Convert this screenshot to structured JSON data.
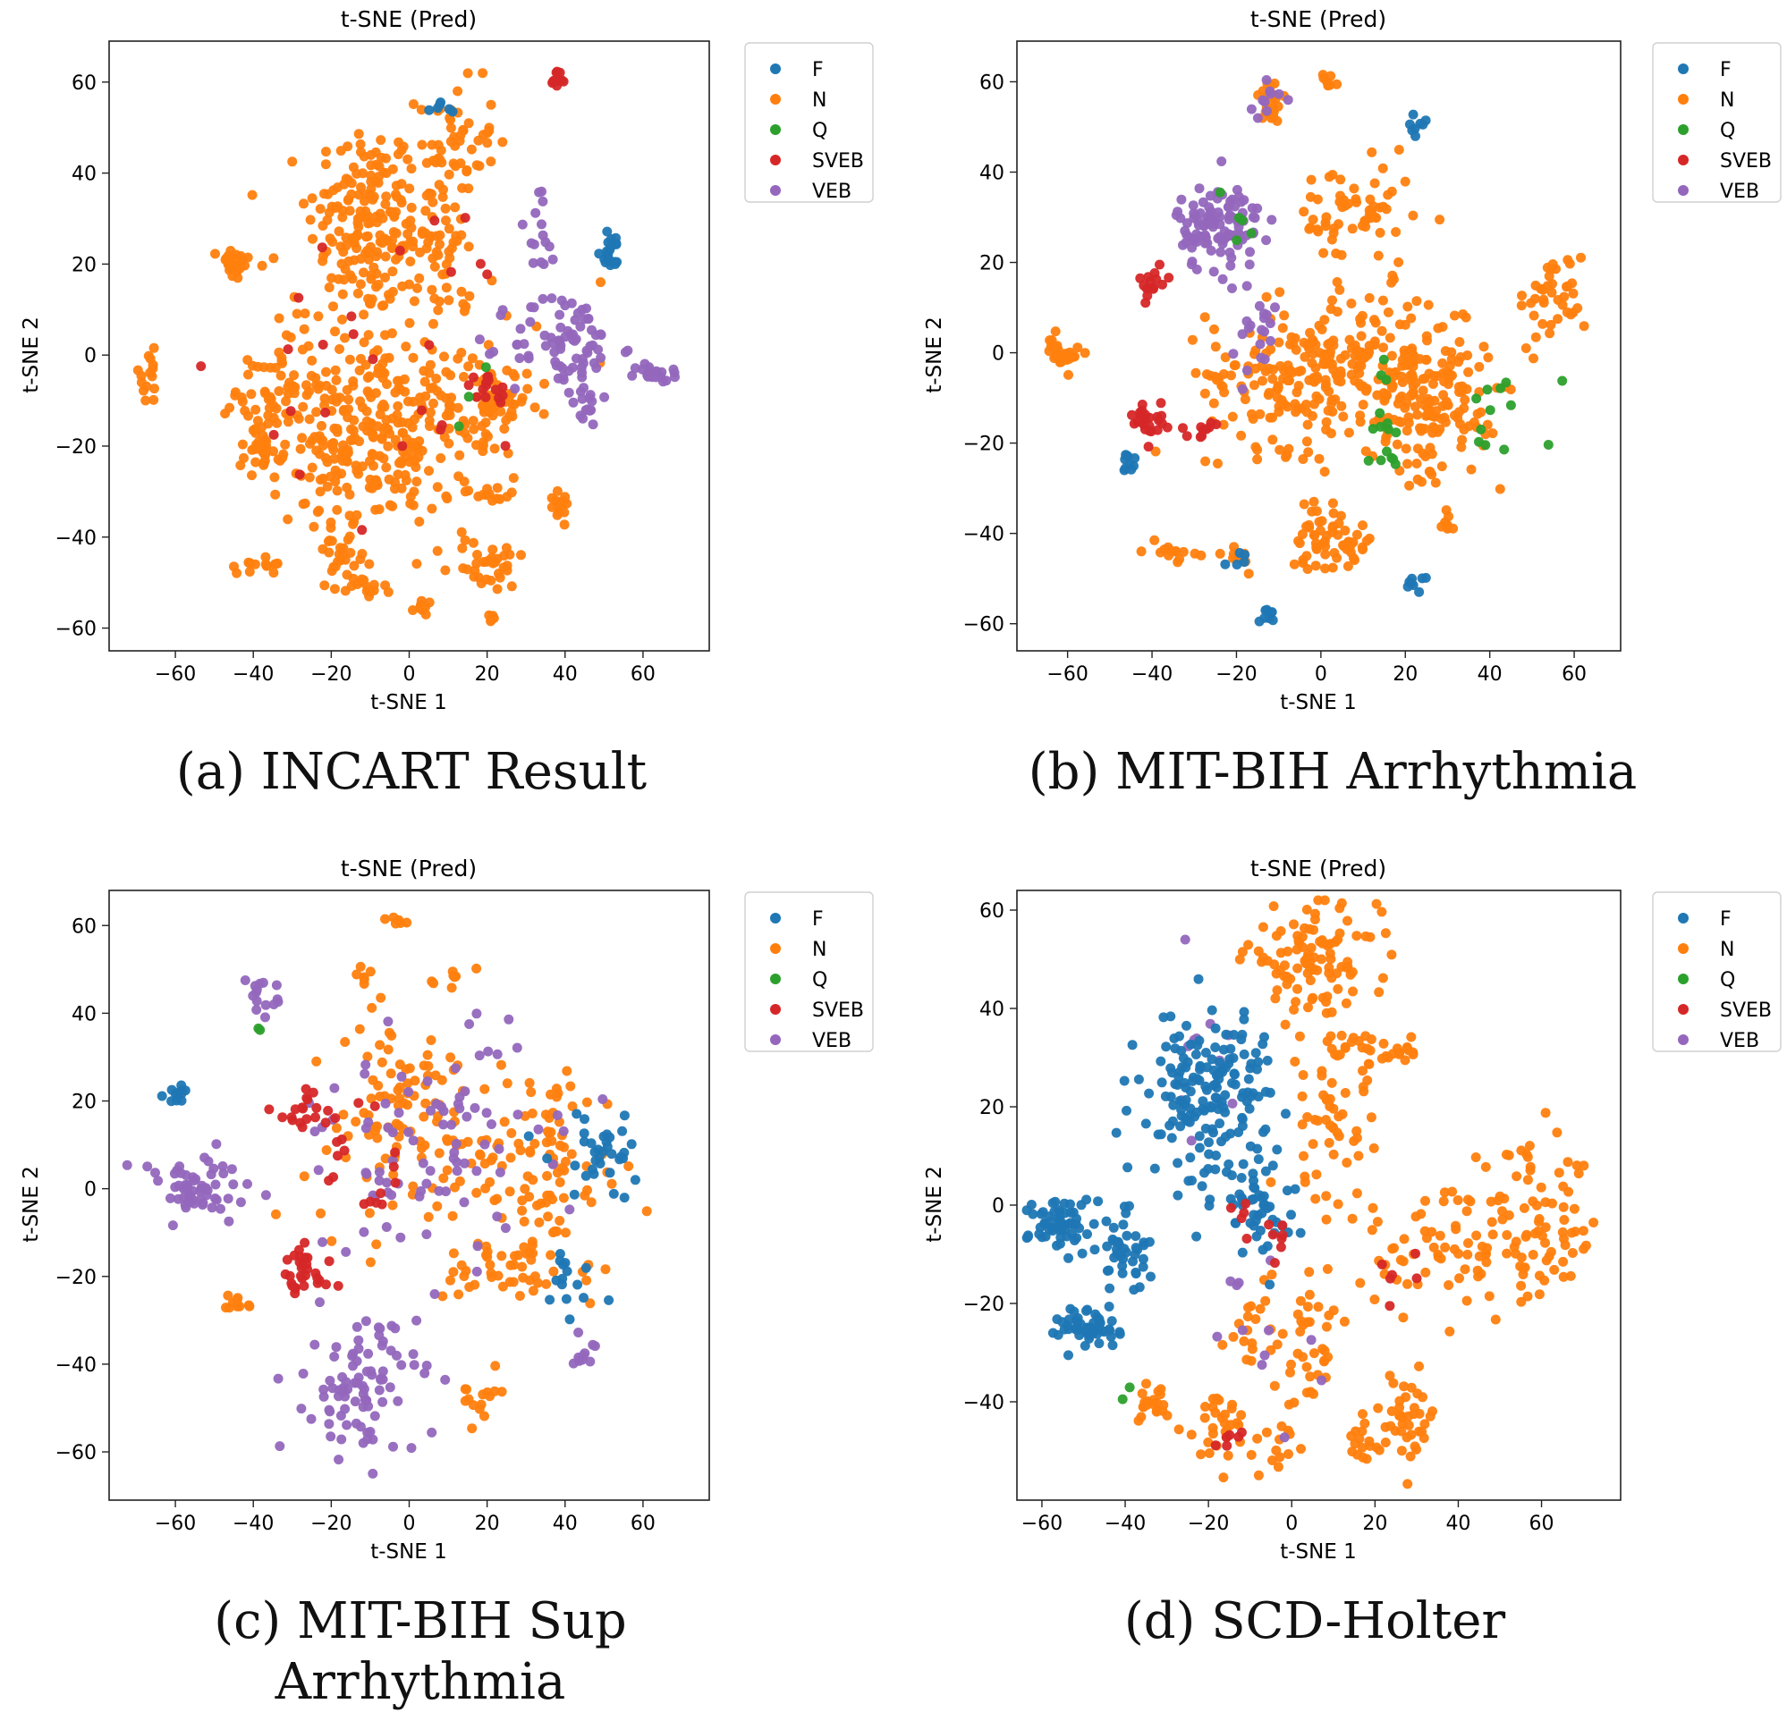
{
  "figures": [
    {
      "caption": "(a) INCART Result",
      "title": "t-SNE (Pred)",
      "xlabel": "t-SNE 1",
      "ylabel": "t-SNE 2",
      "xticks": [
        "−60",
        "−40",
        "−20",
        "0",
        "20",
        "40",
        "60"
      ],
      "yticks": [
        "60",
        "40",
        "20",
        "0",
        "−20",
        "−40",
        "−60"
      ]
    },
    {
      "caption": "(b) MIT-BIH Arrhythmia",
      "title": "t-SNE (Pred)",
      "xlabel": "t-SNE 1",
      "ylabel": "t-SNE 2",
      "xticks": [
        "−60",
        "−40",
        "−20",
        "0",
        "20",
        "40",
        "60"
      ],
      "yticks": [
        "60",
        "40",
        "20",
        "0",
        "−20",
        "−40",
        "−60"
      ]
    },
    {
      "caption_line1": "(c) MIT-BIH Sup",
      "caption_line2": "Arrhythmia",
      "title": "t-SNE (Pred)",
      "xlabel": "t-SNE 1",
      "ylabel": "t-SNE 2",
      "xticks": [
        "−60",
        "−40",
        "−20",
        "0",
        "20",
        "40",
        "60"
      ],
      "yticks": [
        "60",
        "40",
        "20",
        "0",
        "−20",
        "−40",
        "−60"
      ]
    },
    {
      "caption": "(d) SCD-Holter",
      "title": "t-SNE (Pred)",
      "xlabel": "t-SNE 1",
      "ylabel": "t-SNE 2",
      "xticks": [
        "−60",
        "−40",
        "−20",
        "0",
        "20",
        "40",
        "60"
      ],
      "yticks": [
        "60",
        "40",
        "20",
        "0",
        "−20",
        "−40"
      ]
    }
  ],
  "legend": [
    {
      "label": "F",
      "color": "#1f77b4"
    },
    {
      "label": "N",
      "color": "#ff7f0e"
    },
    {
      "label": "Q",
      "color": "#2ca02c"
    },
    {
      "label": "SVEB",
      "color": "#d62728"
    },
    {
      "label": "VEB",
      "color": "#9467bd"
    }
  ],
  "chart_data": [
    {
      "type": "scatter",
      "title": "t-SNE (Pred)",
      "xlabel": "t-SNE 1",
      "ylabel": "t-SNE 2",
      "xlim": [
        -77,
        77
      ],
      "ylim": [
        -65,
        69
      ],
      "xticks": [
        -60,
        -40,
        -20,
        0,
        20,
        40,
        60
      ],
      "yticks": [
        -60,
        -40,
        -20,
        0,
        20,
        40,
        60
      ],
      "legend_position": "outside top-right",
      "clusters": [
        {
          "class": "N",
          "x": -12,
          "y": 30,
          "sx": 7,
          "sy": 11,
          "n": 150
        },
        {
          "class": "N",
          "x": 5,
          "y": 28,
          "sx": 6,
          "sy": 10,
          "n": 80
        },
        {
          "class": "N",
          "x": 12,
          "y": 48,
          "sx": 5,
          "sy": 6,
          "n": 40
        },
        {
          "class": "N",
          "x": -10,
          "y": -20,
          "sx": 13,
          "sy": 9,
          "n": 240
        },
        {
          "class": "N",
          "x": -5,
          "y": 0,
          "sx": 18,
          "sy": 12,
          "n": 120
        },
        {
          "class": "N",
          "x": 20,
          "y": -12,
          "sx": 5,
          "sy": 5,
          "n": 60
        },
        {
          "class": "N",
          "x": -45,
          "y": 20,
          "sx": 2,
          "sy": 2,
          "n": 25
        },
        {
          "class": "N",
          "x": -67,
          "y": -5,
          "sx": 2,
          "sy": 3,
          "n": 15
        },
        {
          "class": "N",
          "x": -38,
          "y": -20,
          "sx": 3,
          "sy": 2,
          "n": 20
        },
        {
          "class": "N",
          "x": -38,
          "y": -46,
          "sx": 3,
          "sy": 1,
          "n": 15
        },
        {
          "class": "N",
          "x": -17,
          "y": -44,
          "sx": 3,
          "sy": 3,
          "n": 25
        },
        {
          "class": "N",
          "x": -12,
          "y": -52,
          "sx": 3,
          "sy": 2,
          "n": 15
        },
        {
          "class": "N",
          "x": 20,
          "y": -46,
          "sx": 5,
          "sy": 3,
          "n": 35
        },
        {
          "class": "N",
          "x": 38,
          "y": -32,
          "sx": 2,
          "sy": 2,
          "n": 15
        },
        {
          "class": "N",
          "x": 20,
          "y": -31,
          "sx": 3,
          "sy": 1,
          "n": 12
        },
        {
          "class": "N",
          "x": 3,
          "y": -55,
          "sx": 1,
          "sy": 1,
          "n": 8
        },
        {
          "class": "N",
          "x": 22,
          "y": -58,
          "sx": 1,
          "sy": 1,
          "n": 6
        },
        {
          "class": "N",
          "x": -35,
          "y": -8,
          "sx": 5,
          "sy": 5,
          "n": 40
        },
        {
          "class": "VEB",
          "x": 40,
          "y": 2,
          "sx": 7,
          "sy": 6,
          "n": 80
        },
        {
          "class": "VEB",
          "x": 64,
          "y": -4,
          "sx": 3,
          "sy": 1,
          "n": 20
        },
        {
          "class": "VEB",
          "x": 33,
          "y": 25,
          "sx": 3,
          "sy": 8,
          "n": 15
        },
        {
          "class": "VEB",
          "x": 45,
          "y": -12,
          "sx": 2,
          "sy": 2,
          "n": 12
        },
        {
          "class": "F",
          "x": 52,
          "y": 23,
          "sx": 2,
          "sy": 2,
          "n": 20
        },
        {
          "class": "F",
          "x": 10,
          "y": 54,
          "sx": 2,
          "sy": 1,
          "n": 6
        },
        {
          "class": "SVEB",
          "x": 38,
          "y": 61,
          "sx": 1,
          "sy": 1,
          "n": 12
        },
        {
          "class": "SVEB",
          "x": 20,
          "y": -8,
          "sx": 3,
          "sy": 2,
          "n": 15
        },
        {
          "class": "SVEB",
          "x": 0,
          "y": 0,
          "sx": 20,
          "sy": 18,
          "n": 25
        },
        {
          "class": "Q",
          "x": 15,
          "y": -8,
          "sx": 4,
          "sy": 4,
          "n": 3
        }
      ]
    },
    {
      "type": "scatter",
      "title": "t-SNE (Pred)",
      "xlabel": "t-SNE 1",
      "ylabel": "t-SNE 2",
      "xlim": [
        -72,
        71
      ],
      "ylim": [
        -66,
        69
      ],
      "xticks": [
        -60,
        -40,
        -20,
        0,
        20,
        40,
        60
      ],
      "yticks": [
        -60,
        -40,
        -20,
        0,
        20,
        40,
        60
      ],
      "legend_position": "outside top-right",
      "clusters": [
        {
          "class": "VEB",
          "x": -24,
          "y": 28,
          "sx": 5,
          "sy": 5,
          "n": 110
        },
        {
          "class": "VEB",
          "x": -15,
          "y": 5,
          "sx": 3,
          "sy": 5,
          "n": 20
        },
        {
          "class": "VEB",
          "x": -13,
          "y": 55,
          "sx": 2,
          "sy": 3,
          "n": 10
        },
        {
          "class": "N",
          "x": -12,
          "y": 56,
          "sx": 2,
          "sy": 3,
          "n": 20
        },
        {
          "class": "N",
          "x": -7,
          "y": -5,
          "sx": 10,
          "sy": 8,
          "n": 160
        },
        {
          "class": "N",
          "x": 15,
          "y": -3,
          "sx": 10,
          "sy": 8,
          "n": 140
        },
        {
          "class": "N",
          "x": 30,
          "y": -10,
          "sx": 6,
          "sy": 7,
          "n": 80
        },
        {
          "class": "N",
          "x": 8,
          "y": 30,
          "sx": 7,
          "sy": 6,
          "n": 60
        },
        {
          "class": "N",
          "x": 55,
          "y": 12,
          "sx": 4,
          "sy": 5,
          "n": 40
        },
        {
          "class": "N",
          "x": -61,
          "y": 0,
          "sx": 2,
          "sy": 2,
          "n": 25
        },
        {
          "class": "N",
          "x": -1,
          "y": -40,
          "sx": 3,
          "sy": 4,
          "n": 40
        },
        {
          "class": "N",
          "x": 8,
          "y": -43,
          "sx": 3,
          "sy": 2,
          "n": 20
        },
        {
          "class": "N",
          "x": -36,
          "y": -44,
          "sx": 3,
          "sy": 1,
          "n": 15
        },
        {
          "class": "N",
          "x": -20,
          "y": -44,
          "sx": 2,
          "sy": 2,
          "n": 10
        },
        {
          "class": "N",
          "x": 2,
          "y": 60,
          "sx": 1,
          "sy": 1,
          "n": 8
        },
        {
          "class": "N",
          "x": 30,
          "y": -37,
          "sx": 1,
          "sy": 2,
          "n": 8
        },
        {
          "class": "N",
          "x": 22,
          "y": -20,
          "sx": 3,
          "sy": 6,
          "n": 30
        },
        {
          "class": "F",
          "x": 23,
          "y": 50,
          "sx": 1,
          "sy": 1,
          "n": 8
        },
        {
          "class": "F",
          "x": 22,
          "y": -51,
          "sx": 1,
          "sy": 1,
          "n": 8
        },
        {
          "class": "F",
          "x": -45,
          "y": -24,
          "sx": 1,
          "sy": 2,
          "n": 10
        },
        {
          "class": "F",
          "x": -13,
          "y": -58,
          "sx": 1,
          "sy": 1,
          "n": 8
        },
        {
          "class": "F",
          "x": -18,
          "y": -46,
          "sx": 2,
          "sy": 1,
          "n": 5
        },
        {
          "class": "SVEB",
          "x": -41,
          "y": -15,
          "sx": 2,
          "sy": 2,
          "n": 25
        },
        {
          "class": "SVEB",
          "x": -40,
          "y": 16,
          "sx": 2,
          "sy": 2,
          "n": 15
        },
        {
          "class": "SVEB",
          "x": -27,
          "y": -17,
          "sx": 3,
          "sy": 1,
          "n": 10
        },
        {
          "class": "Q",
          "x": 15,
          "y": -15,
          "sx": 2,
          "sy": 8,
          "n": 15
        },
        {
          "class": "Q",
          "x": 45,
          "y": -12,
          "sx": 5,
          "sy": 5,
          "n": 12
        },
        {
          "class": "Q",
          "x": -20,
          "y": 30,
          "sx": 3,
          "sy": 3,
          "n": 5
        }
      ]
    },
    {
      "type": "scatter",
      "title": "t-SNE (Pred)",
      "xlabel": "t-SNE 1",
      "ylabel": "t-SNE 2",
      "xlim": [
        -77,
        77
      ],
      "ylim": [
        -71,
        68
      ],
      "xticks": [
        -60,
        -40,
        -20,
        0,
        20,
        40,
        60
      ],
      "yticks": [
        -60,
        -40,
        -20,
        0,
        20,
        40,
        60
      ],
      "legend_position": "outside top-right",
      "clusters": [
        {
          "class": "VEB",
          "x": -55,
          "y": -1,
          "sx": 8,
          "sy": 4,
          "n": 60
        },
        {
          "class": "VEB",
          "x": -12,
          "y": -45,
          "sx": 7,
          "sy": 8,
          "n": 90
        },
        {
          "class": "VEB",
          "x": 5,
          "y": 10,
          "sx": 20,
          "sy": 14,
          "n": 90
        },
        {
          "class": "VEB",
          "x": -38,
          "y": 44,
          "sx": 2,
          "sy": 2,
          "n": 15
        },
        {
          "class": "VEB",
          "x": 45,
          "y": -37,
          "sx": 2,
          "sy": 2,
          "n": 10
        },
        {
          "class": "N",
          "x": -2,
          "y": 15,
          "sx": 12,
          "sy": 12,
          "n": 110
        },
        {
          "class": "N",
          "x": 35,
          "y": 5,
          "sx": 10,
          "sy": 12,
          "n": 100
        },
        {
          "class": "N",
          "x": 25,
          "y": -18,
          "sx": 8,
          "sy": 4,
          "n": 40
        },
        {
          "class": "N",
          "x": -12,
          "y": 49,
          "sx": 1,
          "sy": 1,
          "n": 6
        },
        {
          "class": "N",
          "x": -3,
          "y": 61,
          "sx": 1,
          "sy": 1,
          "n": 6
        },
        {
          "class": "N",
          "x": 10,
          "y": 48,
          "sx": 2,
          "sy": 1,
          "n": 8
        },
        {
          "class": "N",
          "x": 18,
          "y": -47,
          "sx": 3,
          "sy": 3,
          "n": 15
        },
        {
          "class": "N",
          "x": -45,
          "y": -26,
          "sx": 2,
          "sy": 1,
          "n": 10
        },
        {
          "class": "F",
          "x": -59,
          "y": 22,
          "sx": 2,
          "sy": 1,
          "n": 12
        },
        {
          "class": "F",
          "x": 50,
          "y": 8,
          "sx": 7,
          "sy": 5,
          "n": 35
        },
        {
          "class": "F",
          "x": 40,
          "y": -22,
          "sx": 5,
          "sy": 6,
          "n": 15
        },
        {
          "class": "SVEB",
          "x": -28,
          "y": -20,
          "sx": 4,
          "sy": 3,
          "n": 30
        },
        {
          "class": "SVEB",
          "x": -25,
          "y": 18,
          "sx": 5,
          "sy": 3,
          "n": 20
        },
        {
          "class": "SVEB",
          "x": -10,
          "y": 5,
          "sx": 8,
          "sy": 8,
          "n": 15
        },
        {
          "class": "Q",
          "x": -38,
          "y": 37,
          "sx": 1,
          "sy": 1,
          "n": 2
        }
      ]
    },
    {
      "type": "scatter",
      "title": "t-SNE (Pred)",
      "xlabel": "t-SNE 1",
      "ylabel": "t-SNE 2",
      "xlim": [
        -66,
        79
      ],
      "ylim": [
        -60,
        64
      ],
      "xticks": [
        -60,
        -40,
        -20,
        0,
        20,
        40,
        60
      ],
      "yticks": [
        -40,
        -20,
        0,
        20,
        40,
        60
      ],
      "legend_position": "outside top-right",
      "clusters": [
        {
          "class": "F",
          "x": -20,
          "y": 22,
          "sx": 8,
          "sy": 9,
          "n": 180
        },
        {
          "class": "F",
          "x": -8,
          "y": 0,
          "sx": 4,
          "sy": 5,
          "n": 40
        },
        {
          "class": "F",
          "x": -55,
          "y": -4,
          "sx": 4,
          "sy": 3,
          "n": 60
        },
        {
          "class": "F",
          "x": -40,
          "y": -10,
          "sx": 3,
          "sy": 4,
          "n": 40
        },
        {
          "class": "F",
          "x": -48,
          "y": -25,
          "sx": 4,
          "sy": 2,
          "n": 50
        },
        {
          "class": "N",
          "x": 5,
          "y": 50,
          "sx": 8,
          "sy": 5,
          "n": 100
        },
        {
          "class": "N",
          "x": 10,
          "y": 15,
          "sx": 6,
          "sy": 10,
          "n": 60
        },
        {
          "class": "N",
          "x": 20,
          "y": 31,
          "sx": 6,
          "sy": 2,
          "n": 30
        },
        {
          "class": "N",
          "x": 58,
          "y": -5,
          "sx": 8,
          "sy": 8,
          "n": 90
        },
        {
          "class": "N",
          "x": 35,
          "y": -10,
          "sx": 8,
          "sy": 6,
          "n": 50
        },
        {
          "class": "N",
          "x": 5,
          "y": -28,
          "sx": 5,
          "sy": 6,
          "n": 40
        },
        {
          "class": "N",
          "x": 27,
          "y": -43,
          "sx": 4,
          "sy": 4,
          "n": 40
        },
        {
          "class": "N",
          "x": -18,
          "y": -45,
          "sx": 4,
          "sy": 4,
          "n": 30
        },
        {
          "class": "N",
          "x": -34,
          "y": -40,
          "sx": 3,
          "sy": 2,
          "n": 20
        },
        {
          "class": "N",
          "x": 18,
          "y": -50,
          "sx": 2,
          "sy": 2,
          "n": 15
        },
        {
          "class": "N",
          "x": -3,
          "y": -48,
          "sx": 2,
          "sy": 3,
          "n": 15
        },
        {
          "class": "N",
          "x": -10,
          "y": -25,
          "sx": 3,
          "sy": 5,
          "n": 15
        },
        {
          "class": "SVEB",
          "x": -8,
          "y": -5,
          "sx": 3,
          "sy": 4,
          "n": 12
        },
        {
          "class": "SVEB",
          "x": -15,
          "y": -48,
          "sx": 2,
          "sy": 2,
          "n": 6
        },
        {
          "class": "SVEB",
          "x": 25,
          "y": -15,
          "sx": 3,
          "sy": 3,
          "n": 6
        },
        {
          "class": "VEB",
          "x": -22,
          "y": 30,
          "sx": 4,
          "sy": 8,
          "n": 10
        },
        {
          "class": "VEB",
          "x": -8,
          "y": -25,
          "sx": 8,
          "sy": 8,
          "n": 12
        },
        {
          "class": "Q",
          "x": -37,
          "y": -38,
          "sx": 1,
          "sy": 1,
          "n": 2
        }
      ]
    }
  ]
}
